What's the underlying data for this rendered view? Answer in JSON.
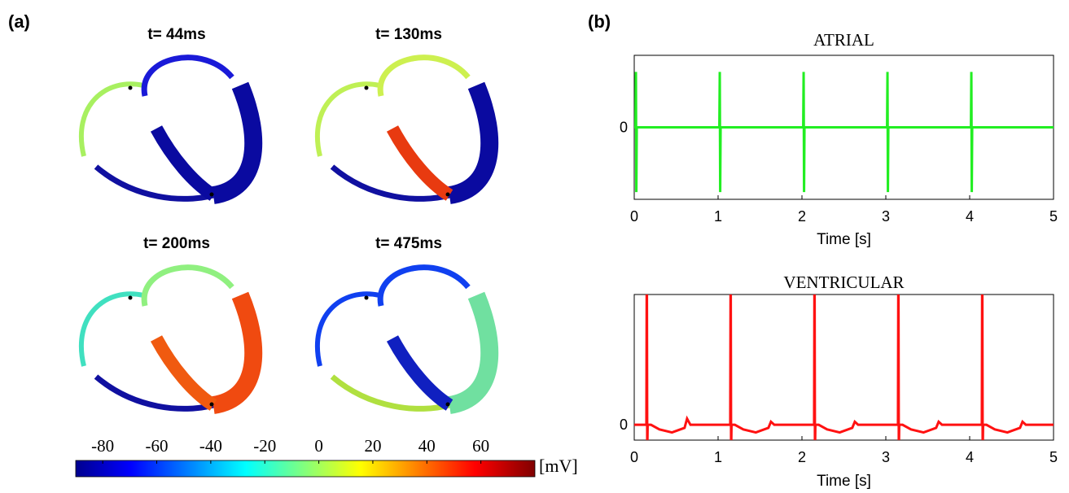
{
  "panel_a": {
    "label": "(a)",
    "snapshots": [
      {
        "title": "t= 44ms"
      },
      {
        "title": "t= 130ms"
      },
      {
        "title": "t= 200ms"
      },
      {
        "title": "t= 475ms"
      }
    ],
    "colorbar": {
      "lim": [
        -90,
        80
      ],
      "ticks": [
        -80,
        -60,
        -40,
        -20,
        0,
        20,
        40,
        60
      ],
      "unit": "[mV]"
    }
  },
  "panel_b": {
    "label": "(b)"
  },
  "chart_data": [
    {
      "type": "line",
      "title": "ATRIAL",
      "xlabel": "Time [s]",
      "color": "#22ee22",
      "xlim": [
        0,
        5
      ],
      "xticks": [
        0,
        1,
        2,
        3,
        4,
        5
      ],
      "ylim": [
        -1.3,
        1.3
      ],
      "yticks": [
        0
      ],
      "x": [
        0,
        0.015,
        0.02,
        0.025,
        0.03,
        1.015,
        1.02,
        1.025,
        1.03,
        2.015,
        2.02,
        2.025,
        2.03,
        3.015,
        3.02,
        3.025,
        3.03,
        4.015,
        4.02,
        4.025,
        4.03,
        5
      ],
      "values": [
        0,
        0,
        1,
        -1.17,
        0,
        0,
        1,
        -1.17,
        0,
        0,
        1,
        -1.17,
        0,
        0,
        1,
        -1.17,
        0,
        0,
        1,
        -1.17,
        0,
        0
      ]
    },
    {
      "type": "line",
      "title": "VENTRICULAR",
      "xlabel": "Time [s]",
      "color": "#ff1111",
      "xlim": [
        0,
        5
      ],
      "xticks": [
        0,
        1,
        2,
        3,
        4,
        5
      ],
      "ylim": [
        -0.1,
        0.85
      ],
      "yticks": [
        0
      ],
      "x": [
        0,
        0.145,
        0.15,
        0.155,
        0.16,
        0.2,
        0.3,
        0.45,
        0.6,
        0.63,
        0.67,
        1.145,
        1.15,
        1.155,
        1.16,
        1.2,
        1.3,
        1.45,
        1.6,
        1.63,
        1.67,
        2.145,
        2.15,
        2.155,
        2.16,
        2.2,
        2.3,
        2.45,
        2.6,
        2.63,
        2.67,
        3.145,
        3.15,
        3.155,
        3.16,
        3.2,
        3.3,
        3.45,
        3.6,
        3.63,
        3.67,
        4.145,
        4.15,
        4.155,
        4.16,
        4.2,
        4.3,
        4.45,
        4.6,
        4.63,
        4.67,
        5
      ],
      "values": [
        0,
        0,
        1.2,
        -0.2,
        0,
        0,
        -0.03,
        -0.05,
        -0.02,
        0.04,
        0,
        0,
        1.2,
        -0.2,
        0,
        0,
        -0.03,
        -0.05,
        -0.02,
        0.02,
        0,
        0,
        1.2,
        -0.2,
        0,
        0,
        -0.03,
        -0.05,
        -0.02,
        0.02,
        0,
        0,
        1.2,
        -0.2,
        0,
        0,
        -0.03,
        -0.05,
        -0.02,
        0.02,
        0,
        0,
        1.2,
        -0.2,
        0,
        0,
        -0.03,
        -0.05,
        -0.02,
        0.02,
        0,
        0
      ]
    }
  ]
}
